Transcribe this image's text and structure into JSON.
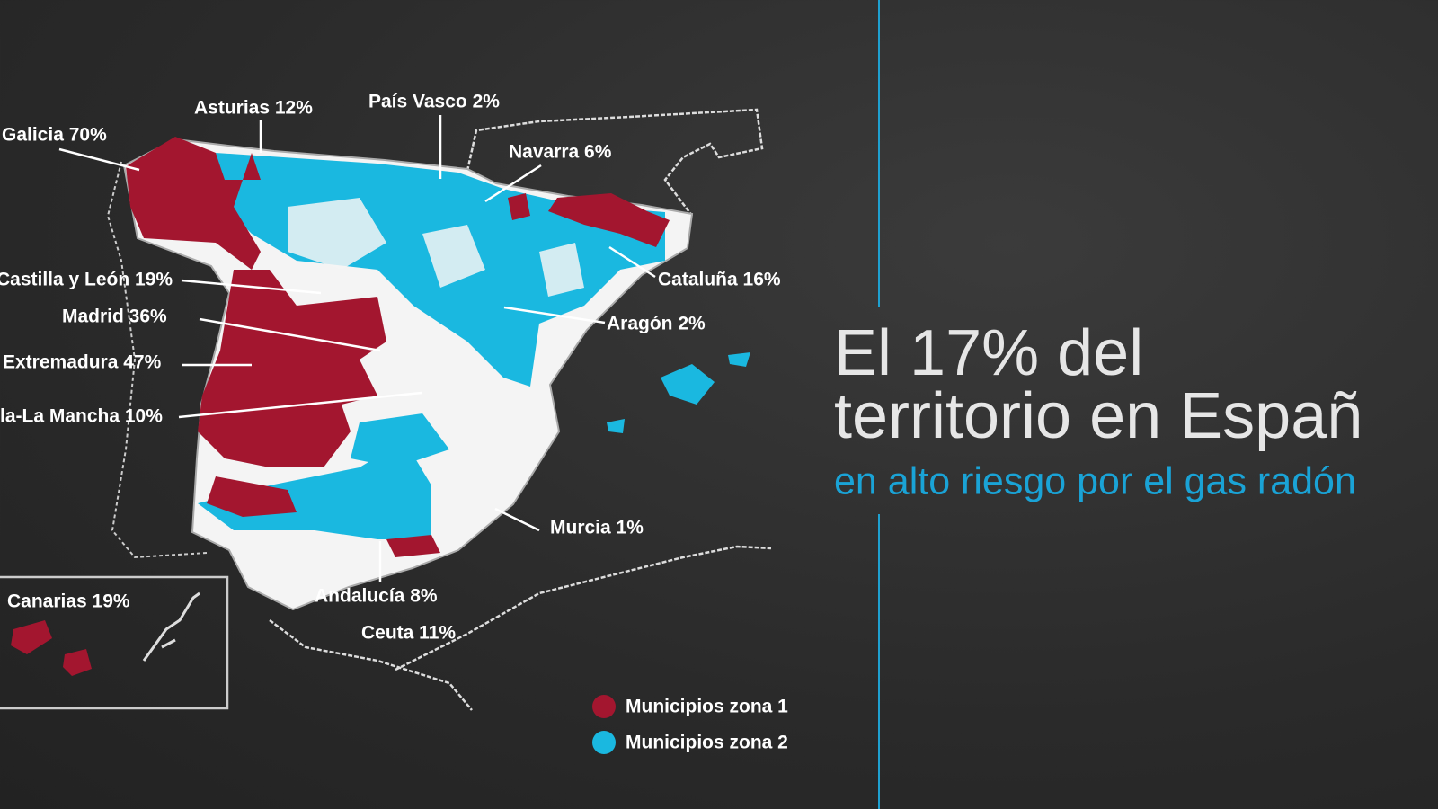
{
  "headline": {
    "line1": "El 17% del",
    "line2": "territorio en Españ",
    "subtitle": "en alto riesgo por el gas radón"
  },
  "regions": [
    {
      "label": "Galicia 70%"
    },
    {
      "label": "Asturias 12%"
    },
    {
      "label": "País Vasco 2%"
    },
    {
      "label": "Navarra 6%"
    },
    {
      "label": "Cataluña 16%"
    },
    {
      "label": "Castilla y León 19%"
    },
    {
      "label": "Madrid 36%"
    },
    {
      "label": "Aragón 2%"
    },
    {
      "label": "Extremadura 47%"
    },
    {
      "label": "la-La Mancha 10%"
    },
    {
      "label": "Murcia 1%"
    },
    {
      "label": "Andalucía 8%"
    },
    {
      "label": "Ceuta 11%"
    },
    {
      "label": "Canarias 19%"
    }
  ],
  "legend": [
    {
      "label": "Municipios zona 1"
    },
    {
      "label": "Municipios zona 2"
    }
  ]
}
